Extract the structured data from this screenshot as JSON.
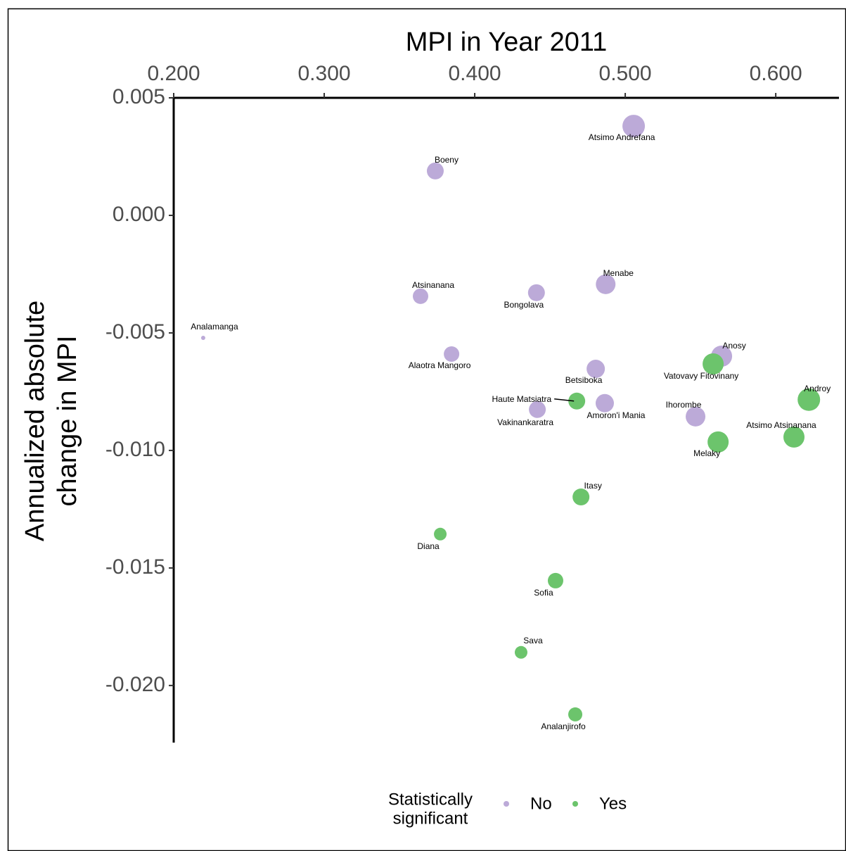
{
  "chart_data": {
    "type": "scatter",
    "title": "MPI in Year 2011",
    "y_label": [
      "Annualized absolute",
      "change in MPI"
    ],
    "legend_title": [
      "Statistically",
      "significant"
    ],
    "legend_position": "bottom",
    "xlim": [
      0.2,
      0.642
    ],
    "ylim": [
      -0.02243,
      0.005
    ],
    "xticks": [
      {
        "value": 0.2,
        "label": "0.200"
      },
      {
        "value": 0.3,
        "label": "0.300"
      },
      {
        "value": 0.4,
        "label": "0.400"
      },
      {
        "value": 0.5,
        "label": "0.500"
      },
      {
        "value": 0.6,
        "label": "0.600"
      }
    ],
    "yticks": [
      0.005,
      {
        "value": 0,
        "label": "0.000"
      },
      -0.005,
      {
        "value": -0.01,
        "label": "-0.010"
      },
      -0.015,
      {
        "value": -0.02,
        "label": "-0.020"
      }
    ],
    "series": [
      {
        "name": "No",
        "color": "#bcaad8",
        "labels": [
          "Atsimo Andrefana",
          "Boeny",
          "Atsinanana",
          "Bongolava",
          "Menabe",
          "Analamanga",
          "Alaotra Mangoro",
          "Betsiboka",
          "Anosy",
          "Vakinankaratra",
          "Amoron'i Mania",
          "Ihorombe"
        ],
        "x": [
          0.5056,
          0.3738,
          0.364,
          0.441,
          0.487,
          0.2196,
          0.3846,
          0.4804,
          0.564,
          0.4416,
          0.4864,
          0.5467
        ],
        "values": [
          0.0038,
          0.00189,
          -0.00344,
          -0.00329,
          -0.00293,
          -0.00521,
          -0.0059,
          -0.00653,
          -0.00599,
          -0.00826,
          -0.00799,
          -0.00856
        ],
        "sizes": [
          16,
          12,
          11,
          12,
          14,
          3,
          11,
          13,
          15,
          12,
          13,
          14
        ]
      },
      {
        "name": "Yes",
        "color": "#6cc46c",
        "labels": [
          "Vatovavy Fitovinany",
          "Androy",
          "Haute Matsiatra",
          "Atsimo Atsinanana",
          "Melaky",
          "Itasy",
          "Diana",
          "Sofia",
          "Sava",
          "Analanjirofo"
        ],
        "x": [
          0.5584,
          0.622,
          0.4678,
          0.6121,
          0.5617,
          0.4706,
          0.3771,
          0.4537,
          0.4308,
          0.4668
        ],
        "values": [
          -0.00632,
          -0.00784,
          -0.0079,
          -0.00943,
          -0.00964,
          -0.01198,
          -0.01356,
          -0.01554,
          -0.01859,
          -0.02123
        ],
        "sizes": [
          15,
          16,
          12,
          15,
          15,
          12,
          9,
          11,
          9,
          10
        ]
      }
    ]
  }
}
